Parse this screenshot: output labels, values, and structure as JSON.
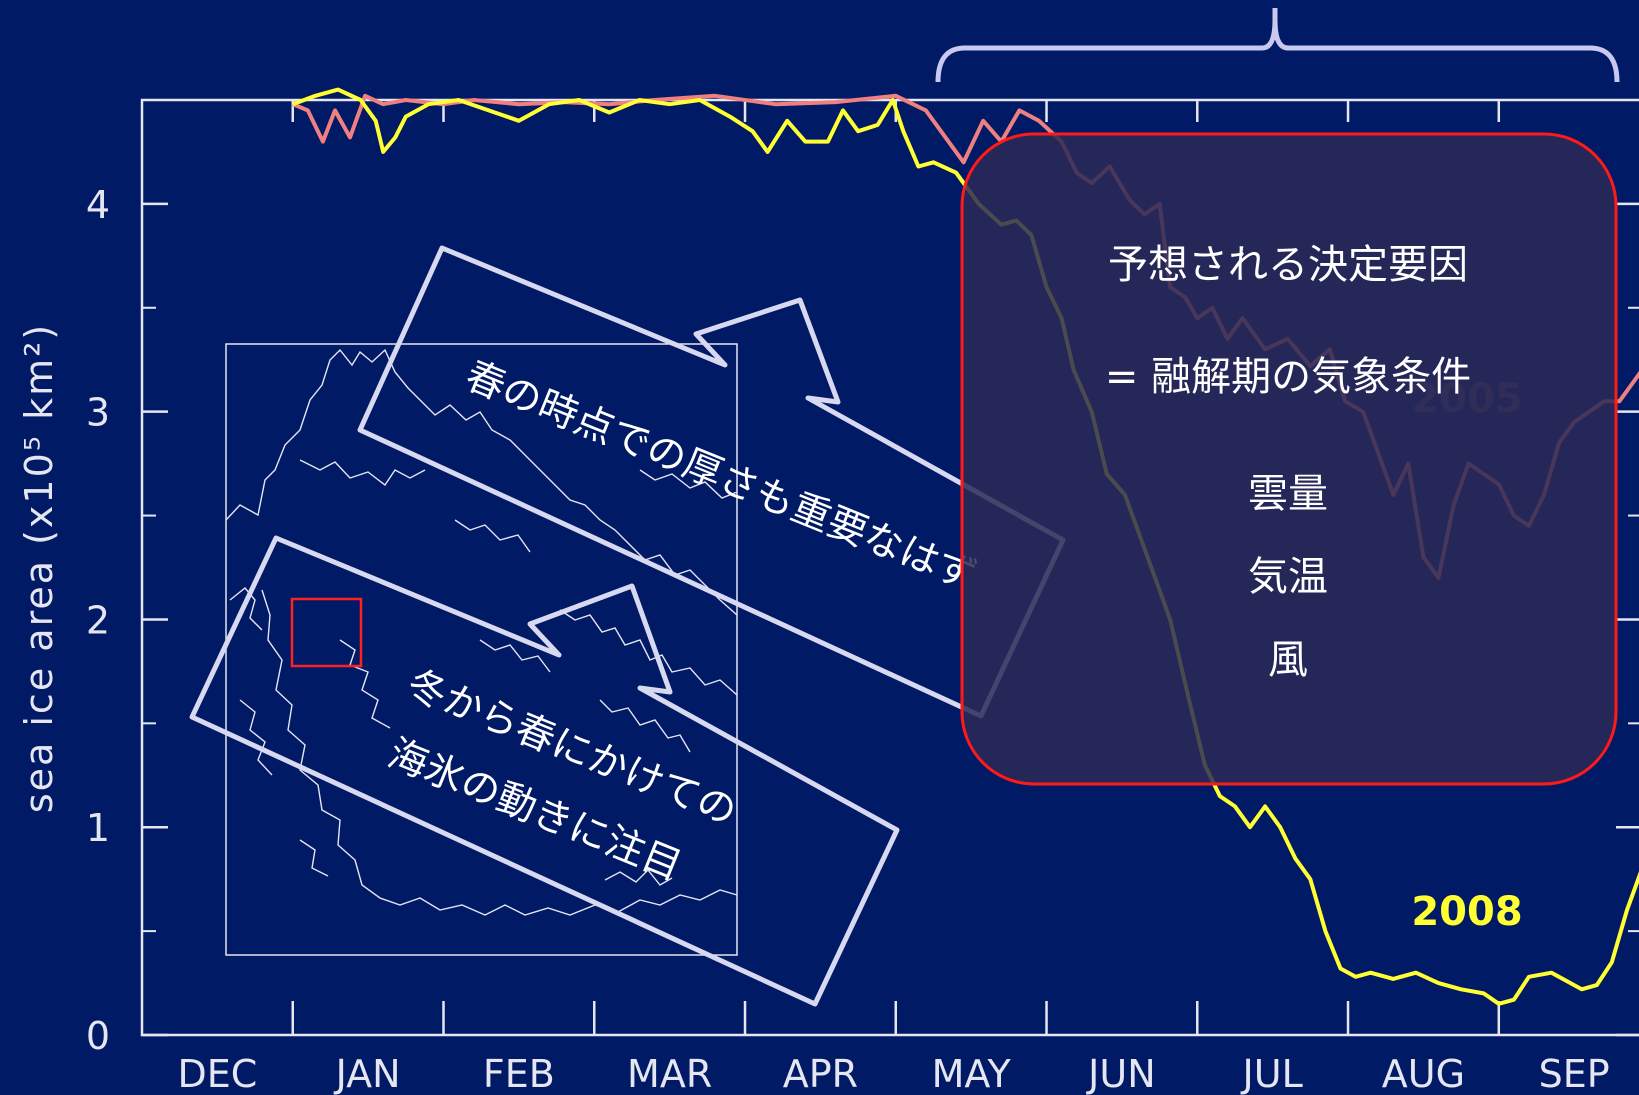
{
  "chart_data": {
    "type": "line",
    "ylabel": "sea ice area (x10⁵ km²)",
    "ylim": [
      0,
      4.5
    ],
    "yticks": [
      0,
      1,
      2,
      3,
      4
    ],
    "month_labels": [
      "DEC",
      "JAN",
      "FEB",
      "MAR",
      "APR",
      "MAY",
      "JUN",
      "JUL",
      "AUG",
      "SEP"
    ],
    "xlim_months": [
      0,
      9.95
    ],
    "series": [
      {
        "name": "2005",
        "color": "#f08080",
        "points": [
          [
            1.0,
            4.48
          ],
          [
            1.1,
            4.45
          ],
          [
            1.2,
            4.3
          ],
          [
            1.28,
            4.45
          ],
          [
            1.38,
            4.32
          ],
          [
            1.48,
            4.52
          ],
          [
            1.6,
            4.48
          ],
          [
            1.75,
            4.5
          ],
          [
            2.0,
            4.48
          ],
          [
            2.2,
            4.5
          ],
          [
            2.5,
            4.48
          ],
          [
            2.8,
            4.49
          ],
          [
            3.1,
            4.48
          ],
          [
            3.4,
            4.5
          ],
          [
            3.8,
            4.52
          ],
          [
            4.2,
            4.48
          ],
          [
            4.6,
            4.49
          ],
          [
            5.0,
            4.52
          ],
          [
            5.2,
            4.45
          ],
          [
            5.35,
            4.3
          ],
          [
            5.45,
            4.2
          ],
          [
            5.58,
            4.4
          ],
          [
            5.7,
            4.3
          ],
          [
            5.82,
            4.45
          ],
          [
            5.95,
            4.4
          ],
          [
            6.1,
            4.3
          ],
          [
            6.2,
            4.15
          ],
          [
            6.3,
            4.1
          ],
          [
            6.42,
            4.18
          ],
          [
            6.55,
            4.02
          ],
          [
            6.65,
            3.95
          ],
          [
            6.75,
            4.0
          ],
          [
            6.82,
            3.6
          ],
          [
            6.92,
            3.55
          ],
          [
            7.0,
            3.45
          ],
          [
            7.1,
            3.5
          ],
          [
            7.2,
            3.35
          ],
          [
            7.3,
            3.45
          ],
          [
            7.45,
            3.3
          ],
          [
            7.6,
            3.35
          ],
          [
            7.75,
            3.22
          ],
          [
            7.88,
            3.3
          ],
          [
            7.98,
            3.05
          ],
          [
            8.1,
            3.0
          ],
          [
            8.2,
            2.8
          ],
          [
            8.3,
            2.6
          ],
          [
            8.4,
            2.75
          ],
          [
            8.5,
            2.3
          ],
          [
            8.6,
            2.2
          ],
          [
            8.7,
            2.55
          ],
          [
            8.8,
            2.75
          ],
          [
            8.9,
            2.7
          ],
          [
            9.0,
            2.65
          ],
          [
            9.1,
            2.5
          ],
          [
            9.2,
            2.45
          ],
          [
            9.3,
            2.6
          ],
          [
            9.4,
            2.85
          ],
          [
            9.5,
            2.95
          ],
          [
            9.6,
            3.0
          ],
          [
            9.7,
            3.05
          ],
          [
            9.8,
            3.05
          ],
          [
            9.9,
            3.15
          ],
          [
            9.95,
            3.2
          ]
        ]
      },
      {
        "name": "2008",
        "color": "#ffff33",
        "points": [
          [
            1.0,
            4.48
          ],
          [
            1.15,
            4.52
          ],
          [
            1.3,
            4.55
          ],
          [
            1.45,
            4.5
          ],
          [
            1.55,
            4.4
          ],
          [
            1.6,
            4.25
          ],
          [
            1.68,
            4.32
          ],
          [
            1.75,
            4.42
          ],
          [
            1.9,
            4.48
          ],
          [
            2.1,
            4.5
          ],
          [
            2.3,
            4.45
          ],
          [
            2.5,
            4.4
          ],
          [
            2.7,
            4.48
          ],
          [
            2.9,
            4.5
          ],
          [
            3.1,
            4.44
          ],
          [
            3.3,
            4.5
          ],
          [
            3.5,
            4.48
          ],
          [
            3.7,
            4.5
          ],
          [
            3.9,
            4.42
          ],
          [
            4.05,
            4.35
          ],
          [
            4.15,
            4.25
          ],
          [
            4.28,
            4.4
          ],
          [
            4.4,
            4.3
          ],
          [
            4.55,
            4.3
          ],
          [
            4.65,
            4.45
          ],
          [
            4.75,
            4.35
          ],
          [
            4.88,
            4.38
          ],
          [
            4.98,
            4.5
          ],
          [
            5.05,
            4.35
          ],
          [
            5.15,
            4.18
          ],
          [
            5.25,
            4.2
          ],
          [
            5.4,
            4.15
          ],
          [
            5.55,
            4.0
          ],
          [
            5.7,
            3.9
          ],
          [
            5.8,
            3.92
          ],
          [
            5.9,
            3.85
          ],
          [
            6.0,
            3.6
          ],
          [
            6.1,
            3.45
          ],
          [
            6.18,
            3.2
          ],
          [
            6.3,
            3.0
          ],
          [
            6.4,
            2.7
          ],
          [
            6.52,
            2.6
          ],
          [
            6.62,
            2.4
          ],
          [
            6.72,
            2.2
          ],
          [
            6.82,
            2.0
          ],
          [
            6.95,
            1.6
          ],
          [
            7.05,
            1.3
          ],
          [
            7.15,
            1.15
          ],
          [
            7.25,
            1.1
          ],
          [
            7.35,
            1.0
          ],
          [
            7.45,
            1.1
          ],
          [
            7.55,
            1.0
          ],
          [
            7.65,
            0.85
          ],
          [
            7.75,
            0.75
          ],
          [
            7.85,
            0.5
          ],
          [
            7.95,
            0.32
          ],
          [
            8.05,
            0.28
          ],
          [
            8.15,
            0.3
          ],
          [
            8.3,
            0.27
          ],
          [
            8.45,
            0.3
          ],
          [
            8.6,
            0.25
          ],
          [
            8.75,
            0.22
          ],
          [
            8.9,
            0.2
          ],
          [
            9.0,
            0.15
          ],
          [
            9.1,
            0.17
          ],
          [
            9.2,
            0.28
          ],
          [
            9.35,
            0.3
          ],
          [
            9.45,
            0.26
          ],
          [
            9.55,
            0.22
          ],
          [
            9.65,
            0.24
          ],
          [
            9.75,
            0.35
          ],
          [
            9.85,
            0.6
          ],
          [
            9.95,
            0.8
          ]
        ]
      }
    ],
    "annotations": {
      "year_2005": "2005",
      "year_2008": "2008",
      "arrow_upper": "春の時点での厚さも重要なはず",
      "arrow_lower_line1": "冬から春にかけての",
      "arrow_lower_line2": "海氷の動きに注目",
      "box_title": "予想される決定要因",
      "box_subtitle": "= 融解期の気象条件",
      "box_items": [
        "雲量",
        "気温",
        "風"
      ]
    },
    "grid": false
  },
  "colors": {
    "background": "#001a66",
    "axis": "#e6e6f2",
    "box_border": "#ff1a1a",
    "box_fill": "#2a2a55"
  }
}
